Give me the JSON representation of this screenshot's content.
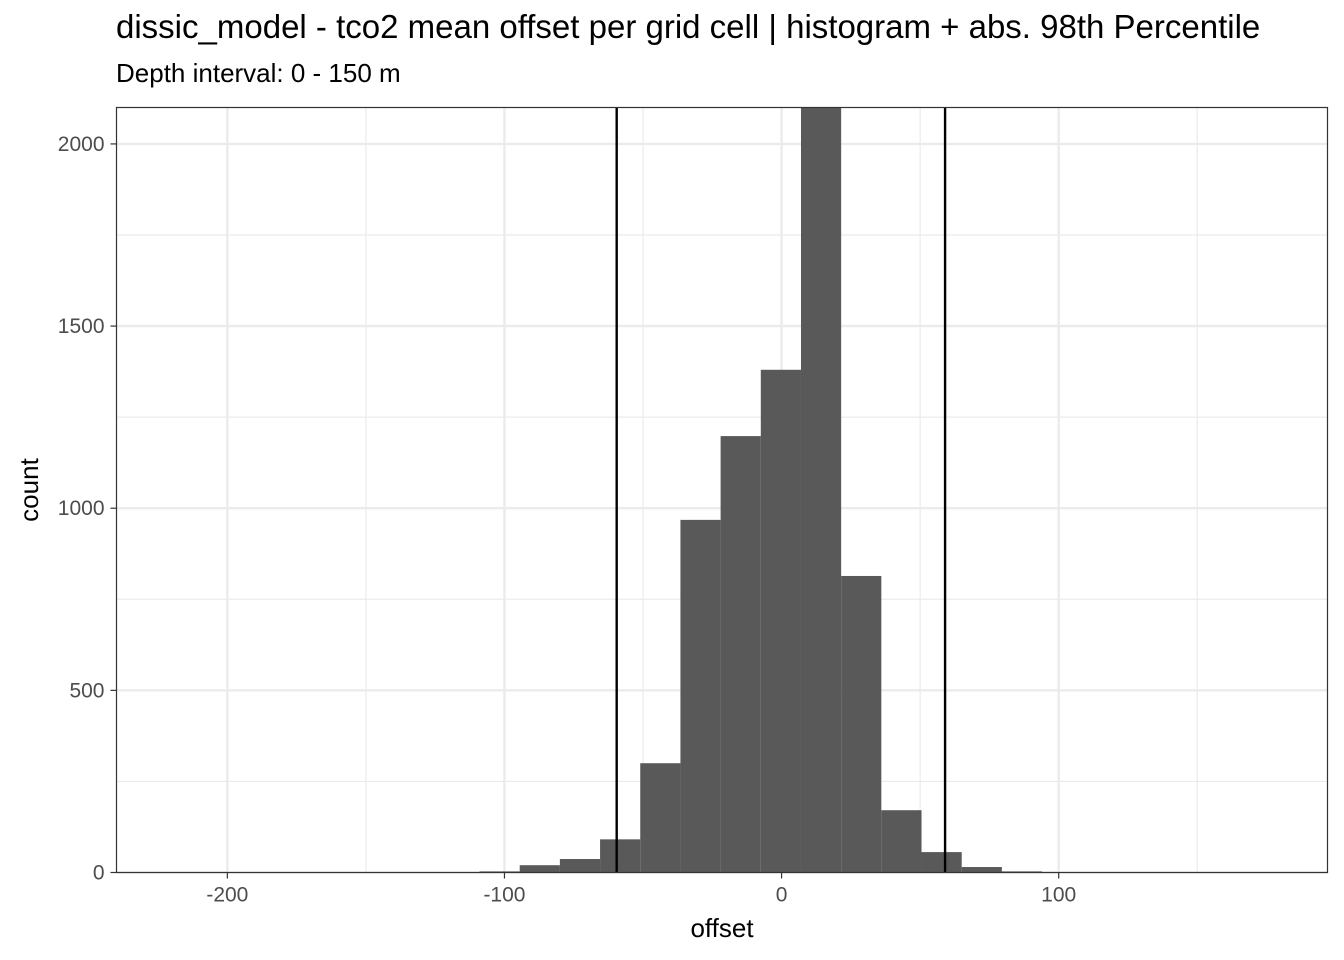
{
  "chart_data": {
    "type": "bar",
    "title": "dissic_model  -  tco2 mean offset per grid cell | histogram + abs. 98th Percentile",
    "subtitle": "Depth interval: 0 - 150 m",
    "xlabel": "offset",
    "ylabel": "count",
    "xlim": [
      -240,
      197
    ],
    "ylim": [
      0,
      2100
    ],
    "grid": true,
    "x_ticks": [
      -200,
      -100,
      0,
      100
    ],
    "x_tick_labels": [
      "-200",
      "-100",
      "0",
      "100"
    ],
    "y_ticks": [
      0,
      500,
      1000,
      1500,
      2000
    ],
    "y_tick_labels": [
      "0",
      "500",
      "1000",
      "1500",
      "2000"
    ],
    "bin_width": 14.5,
    "bins": [
      {
        "x0": -109.0,
        "x1": -94.5,
        "count": 3
      },
      {
        "x0": -94.5,
        "x1": -80.0,
        "count": 20
      },
      {
        "x0": -80.0,
        "x1": -65.5,
        "count": 37
      },
      {
        "x0": -65.5,
        "x1": -51.0,
        "count": 91
      },
      {
        "x0": -51.0,
        "x1": -36.5,
        "count": 300
      },
      {
        "x0": -36.5,
        "x1": -22.0,
        "count": 968
      },
      {
        "x0": -22.0,
        "x1": -7.5,
        "count": 1198
      },
      {
        "x0": -7.5,
        "x1": 7.0,
        "count": 1380
      },
      {
        "x0": 7.0,
        "x1": 21.5,
        "count": 2120
      },
      {
        "x0": 21.5,
        "x1": 36.0,
        "count": 814
      },
      {
        "x0": 36.0,
        "x1": 50.5,
        "count": 171
      },
      {
        "x0": 50.5,
        "x1": 65.0,
        "count": 56
      },
      {
        "x0": 65.0,
        "x1": 79.5,
        "count": 15
      },
      {
        "x0": 79.5,
        "x1": 94.0,
        "count": 3
      }
    ],
    "percentile_lines": [
      -59.5,
      59.0
    ],
    "bar_color": "#595959",
    "line_color": "#000000"
  }
}
